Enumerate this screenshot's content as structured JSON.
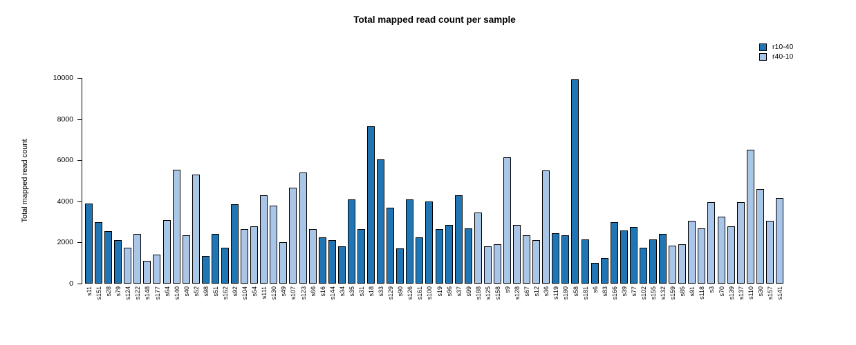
{
  "title": "Total mapped read count per sample",
  "y_axis": {
    "label": "Total mapped read count"
  },
  "legend": {
    "items": [
      {
        "label": "r10-40",
        "color": "#2076b4"
      },
      {
        "label": "r40-10",
        "color": "#a9c5e8"
      }
    ]
  },
  "chart_data": {
    "type": "bar",
    "title": "Total mapped read count per sample",
    "xlabel": "",
    "ylabel": "Total mapped read count",
    "ylim": [
      0,
      10000
    ],
    "yticks": [
      0,
      2000,
      4000,
      6000,
      8000,
      10000
    ],
    "grid": false,
    "legend_position": "top-right",
    "series_colors": {
      "r10-40": "#2076b4",
      "r40-10": "#a9c5e8"
    },
    "samples": [
      {
        "name": "s11",
        "value": 3900,
        "series": "r10-40"
      },
      {
        "name": "s151",
        "value": 3000,
        "series": "r10-40"
      },
      {
        "name": "s28",
        "value": 2550,
        "series": "r10-40"
      },
      {
        "name": "s79",
        "value": 2100,
        "series": "r10-40"
      },
      {
        "name": "s124",
        "value": 1750,
        "series": "r40-10"
      },
      {
        "name": "s122",
        "value": 2400,
        "series": "r40-10"
      },
      {
        "name": "s148",
        "value": 1100,
        "series": "r40-10"
      },
      {
        "name": "s177",
        "value": 1400,
        "series": "r40-10"
      },
      {
        "name": "s64",
        "value": 3100,
        "series": "r40-10"
      },
      {
        "name": "s140",
        "value": 5550,
        "series": "r40-10"
      },
      {
        "name": "s40",
        "value": 2350,
        "series": "r40-10"
      },
      {
        "name": "s52",
        "value": 5300,
        "series": "r40-10"
      },
      {
        "name": "s98",
        "value": 1350,
        "series": "r10-40"
      },
      {
        "name": "s51",
        "value": 2400,
        "series": "r10-40"
      },
      {
        "name": "s162",
        "value": 1750,
        "series": "r10-40"
      },
      {
        "name": "s92",
        "value": 3850,
        "series": "r10-40"
      },
      {
        "name": "s104",
        "value": 2650,
        "series": "r40-10"
      },
      {
        "name": "s54",
        "value": 2800,
        "series": "r40-10"
      },
      {
        "name": "s111",
        "value": 4300,
        "series": "r40-10"
      },
      {
        "name": "s130",
        "value": 3800,
        "series": "r40-10"
      },
      {
        "name": "s49",
        "value": 2000,
        "series": "r40-10"
      },
      {
        "name": "s107",
        "value": 4650,
        "series": "r40-10"
      },
      {
        "name": "s123",
        "value": 5400,
        "series": "r40-10"
      },
      {
        "name": "s66",
        "value": 2650,
        "series": "r40-10"
      },
      {
        "name": "s16",
        "value": 2250,
        "series": "r10-40"
      },
      {
        "name": "s144",
        "value": 2100,
        "series": "r10-40"
      },
      {
        "name": "s34",
        "value": 1800,
        "series": "r10-40"
      },
      {
        "name": "s35",
        "value": 4100,
        "series": "r10-40"
      },
      {
        "name": "s31",
        "value": 2650,
        "series": "r10-40"
      },
      {
        "name": "s18",
        "value": 7650,
        "series": "r10-40"
      },
      {
        "name": "s33",
        "value": 6050,
        "series": "r10-40"
      },
      {
        "name": "s129",
        "value": 3700,
        "series": "r10-40"
      },
      {
        "name": "s90",
        "value": 1700,
        "series": "r10-40"
      },
      {
        "name": "s126",
        "value": 4100,
        "series": "r10-40"
      },
      {
        "name": "s161",
        "value": 2250,
        "series": "r10-40"
      },
      {
        "name": "s100",
        "value": 4000,
        "series": "r10-40"
      },
      {
        "name": "s19",
        "value": 2650,
        "series": "r10-40"
      },
      {
        "name": "s96",
        "value": 2850,
        "series": "r10-40"
      },
      {
        "name": "s37",
        "value": 4300,
        "series": "r10-40"
      },
      {
        "name": "s99",
        "value": 2700,
        "series": "r10-40"
      },
      {
        "name": "s188",
        "value": 3450,
        "series": "r40-10"
      },
      {
        "name": "s125",
        "value": 1800,
        "series": "r40-10"
      },
      {
        "name": "s158",
        "value": 1900,
        "series": "r40-10"
      },
      {
        "name": "s9",
        "value": 6150,
        "series": "r40-10"
      },
      {
        "name": "s128",
        "value": 2850,
        "series": "r40-10"
      },
      {
        "name": "s67",
        "value": 2350,
        "series": "r40-10"
      },
      {
        "name": "s12",
        "value": 2100,
        "series": "r40-10"
      },
      {
        "name": "s36",
        "value": 5500,
        "series": "r40-10"
      },
      {
        "name": "s119",
        "value": 2450,
        "series": "r10-40"
      },
      {
        "name": "s180",
        "value": 2350,
        "series": "r10-40"
      },
      {
        "name": "s58",
        "value": 9950,
        "series": "r10-40"
      },
      {
        "name": "s181",
        "value": 2150,
        "series": "r10-40"
      },
      {
        "name": "s6",
        "value": 1000,
        "series": "r10-40"
      },
      {
        "name": "s83",
        "value": 1250,
        "series": "r10-40"
      },
      {
        "name": "s166",
        "value": 3000,
        "series": "r10-40"
      },
      {
        "name": "s39",
        "value": 2600,
        "series": "r10-40"
      },
      {
        "name": "s77",
        "value": 2750,
        "series": "r10-40"
      },
      {
        "name": "s102",
        "value": 1750,
        "series": "r10-40"
      },
      {
        "name": "s155",
        "value": 2150,
        "series": "r10-40"
      },
      {
        "name": "s132",
        "value": 2400,
        "series": "r10-40"
      },
      {
        "name": "s159",
        "value": 1850,
        "series": "r40-10"
      },
      {
        "name": "s85",
        "value": 1900,
        "series": "r40-10"
      },
      {
        "name": "s91",
        "value": 3050,
        "series": "r40-10"
      },
      {
        "name": "s118",
        "value": 2700,
        "series": "r40-10"
      },
      {
        "name": "s3",
        "value": 3950,
        "series": "r40-10"
      },
      {
        "name": "s70",
        "value": 3250,
        "series": "r40-10"
      },
      {
        "name": "s139",
        "value": 2800,
        "series": "r40-10"
      },
      {
        "name": "s137",
        "value": 3950,
        "series": "r40-10"
      },
      {
        "name": "s110",
        "value": 6500,
        "series": "r40-10"
      },
      {
        "name": "s30",
        "value": 4600,
        "series": "r40-10"
      },
      {
        "name": "s157",
        "value": 3050,
        "series": "r40-10"
      },
      {
        "name": "s141",
        "value": 4150,
        "series": "r40-10"
      }
    ]
  }
}
